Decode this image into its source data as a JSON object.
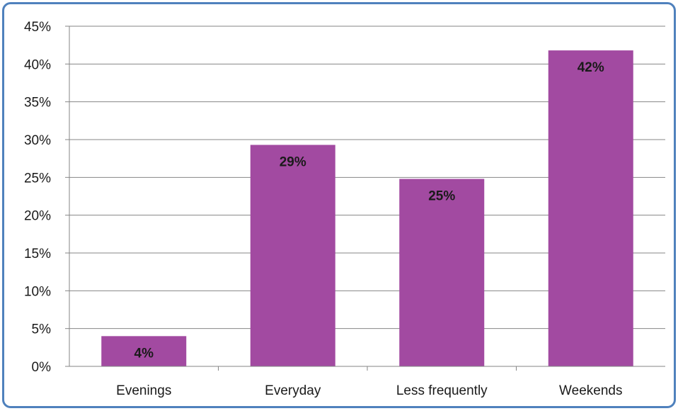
{
  "chart_data": {
    "type": "bar",
    "categories": [
      "Evenings",
      "Everyday",
      "Less frequently",
      "Weekends"
    ],
    "values": [
      4,
      29.3,
      24.8,
      41.8
    ],
    "data_labels": [
      "4%",
      "29%",
      "25%",
      "42%"
    ],
    "ylim": [
      0,
      45
    ],
    "y_ticks": [
      0,
      5,
      10,
      15,
      20,
      25,
      30,
      35,
      40,
      45
    ],
    "y_tick_labels": [
      "0%",
      "5%",
      "10%",
      "15%",
      "20%",
      "25%",
      "30%",
      "35%",
      "40%",
      "45%"
    ],
    "grid": true,
    "legend": "none",
    "bar_color": "#a24aa1",
    "gridline_color": "#868686",
    "border_color": "#4f81bd"
  }
}
